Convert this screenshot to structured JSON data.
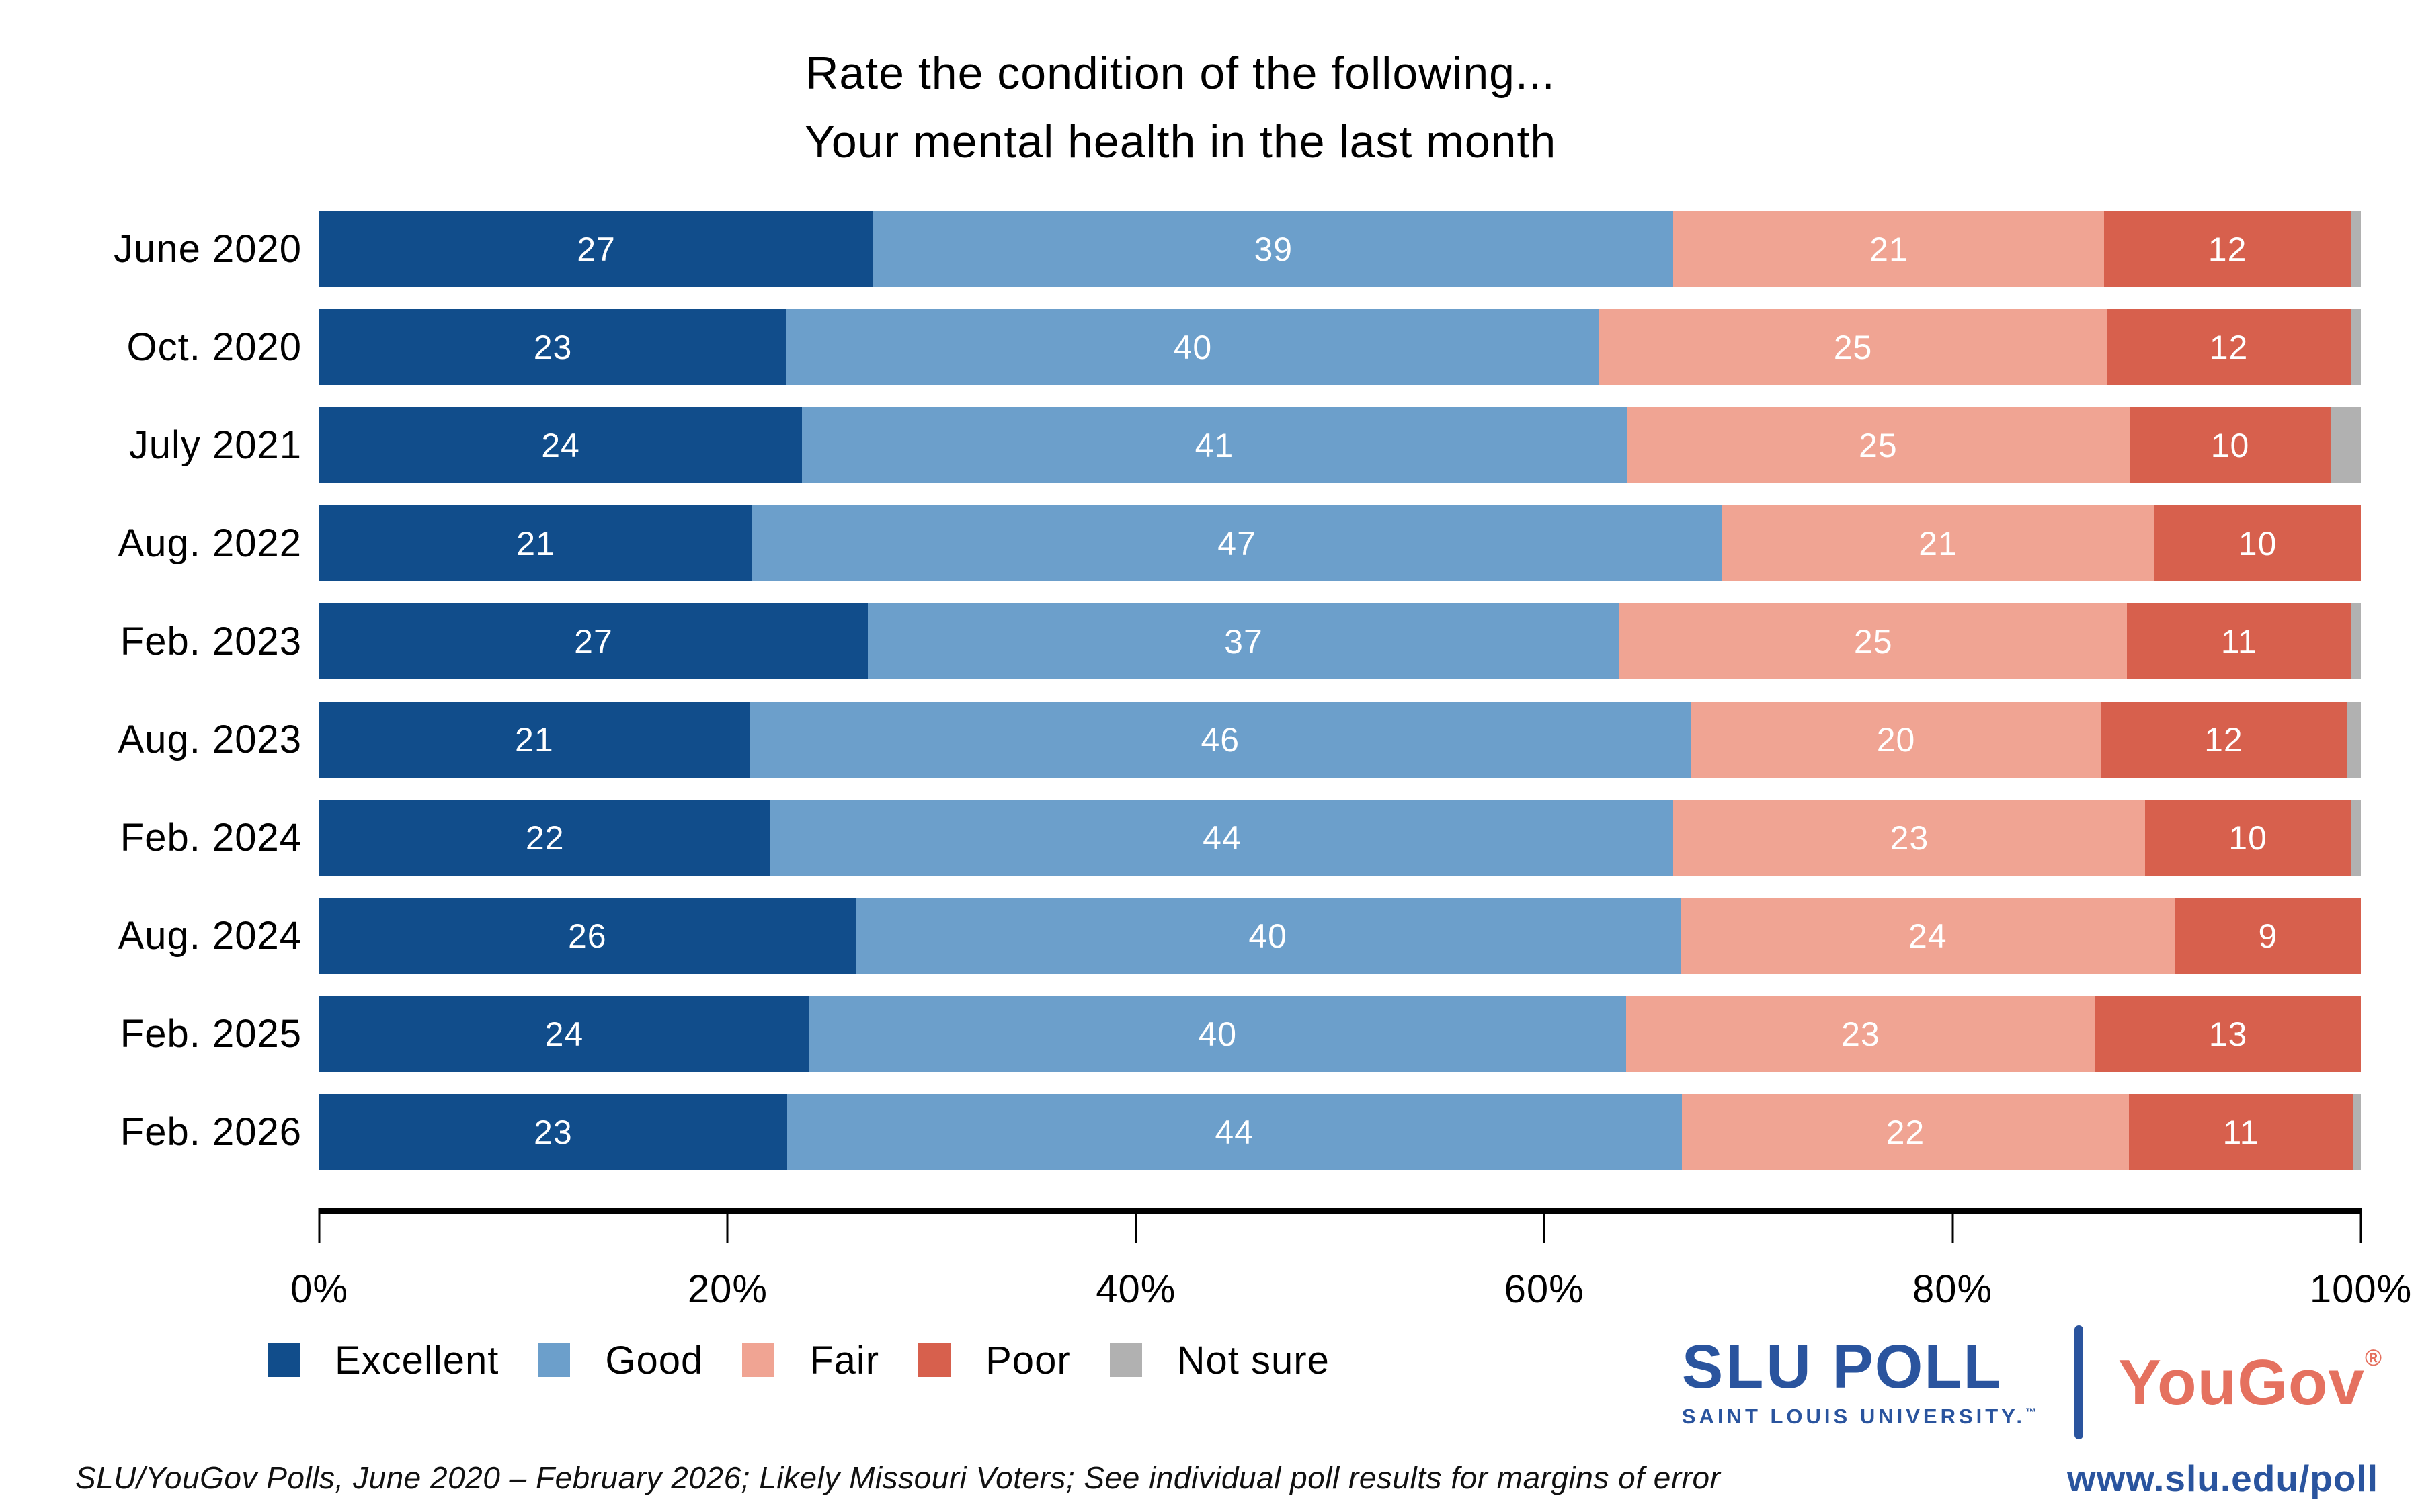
{
  "title": {
    "line1": "Rate the condition of the following...",
    "line2": "Your mental health in the last month"
  },
  "chart_data": {
    "type": "bar",
    "orientation": "horizontal-stacked",
    "title": "Rate the condition of the following... Your mental health in the last month",
    "categories": [
      "June 2020",
      "Oct. 2020",
      "July 2021",
      "Aug. 2022",
      "Feb. 2023",
      "Aug. 2023",
      "Feb. 2024",
      "Aug. 2024",
      "Feb. 2025",
      "Feb. 2026"
    ],
    "series": [
      {
        "name": "Excellent",
        "color": "#114d8b",
        "show_labels": true,
        "values": [
          27,
          23,
          24,
          21,
          27,
          21,
          22,
          26,
          24,
          23
        ]
      },
      {
        "name": "Good",
        "color": "#6c9fcb",
        "show_labels": true,
        "values": [
          39,
          40,
          41,
          47,
          37,
          46,
          44,
          40,
          40,
          44
        ]
      },
      {
        "name": "Fair",
        "color": "#f0a493",
        "show_labels": true,
        "values": [
          21,
          25,
          25,
          21,
          25,
          20,
          23,
          24,
          23,
          22
        ]
      },
      {
        "name": "Poor",
        "color": "#d7604d",
        "show_labels": true,
        "values": [
          12,
          12,
          10,
          10,
          11,
          12,
          10,
          9,
          13,
          11
        ]
      },
      {
        "name": "Not sure",
        "color": "#b1b1b1",
        "show_labels": false,
        "values": [
          0.5,
          0.5,
          1.5,
          0,
          0.5,
          0.7,
          0.5,
          0,
          0,
          0.4
        ]
      }
    ],
    "xlim": [
      0,
      100
    ],
    "x_tick_labels": [
      "0%",
      "20%",
      "40%",
      "60%",
      "80%",
      "100%"
    ],
    "x_tick_positions": [
      0,
      20,
      40,
      60,
      80,
      100
    ],
    "grid": false,
    "legend_position": "bottom-left",
    "value_label_color": "#ffffff"
  },
  "footer": {
    "note": "SLU/YouGov Polls, June 2020 – February 2026; Likely Missouri Voters; See individual poll results for margins of error"
  },
  "logo": {
    "slu_acronym": "SLU",
    "slu_rest": "POLL",
    "slu_tagline": "SAINT LOUIS UNIVERSITY.",
    "slu_tm": "™",
    "slu_color": "#2a549e",
    "yougov": "YouGov",
    "yougov_reg": "®",
    "yougov_color": "#e5715f",
    "url": "www.slu.edu/poll"
  }
}
